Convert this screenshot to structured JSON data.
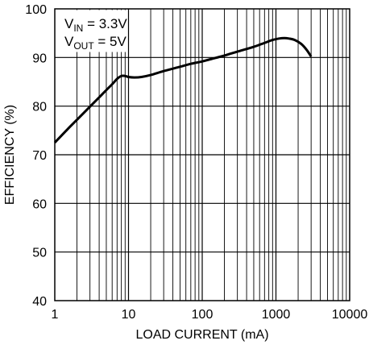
{
  "chart_data": {
    "type": "line",
    "xlabel": "LOAD CURRENT (mA)",
    "ylabel": "EFFICIENCY (%)",
    "xscale": "log",
    "xlim": [
      1,
      10000
    ],
    "ylim": [
      40,
      100
    ],
    "x_ticks": [
      "1",
      "10",
      "100",
      "1000",
      "10000"
    ],
    "y_ticks": [
      "40",
      "50",
      "60",
      "70",
      "80",
      "90",
      "100"
    ],
    "grid": true,
    "annotation": {
      "line1_main": "V",
      "line1_sub": "IN",
      "line1_rest": " = 3.3V",
      "line2_main": "V",
      "line2_sub": "OUT",
      "line2_rest": " = 5V"
    },
    "series": [
      {
        "x": [
          1,
          1.5,
          2,
          3,
          4,
          5,
          6,
          7,
          8,
          9,
          10,
          12,
          15,
          20,
          30,
          50,
          70,
          100,
          150,
          200,
          300,
          500,
          700,
          900,
          1100,
          1300,
          1500,
          1800,
          2200,
          2600,
          3000
        ],
        "y": [
          72.5,
          75.3,
          77.2,
          79.9,
          81.8,
          83.3,
          84.5,
          85.6,
          86.2,
          86.2,
          86.0,
          85.9,
          86.0,
          86.4,
          87.2,
          88.1,
          88.7,
          89.2,
          89.9,
          90.4,
          91.2,
          92.2,
          93.0,
          93.6,
          93.9,
          94.0,
          93.9,
          93.6,
          92.8,
          91.6,
          90.2
        ],
        "color": "#000000"
      }
    ]
  }
}
